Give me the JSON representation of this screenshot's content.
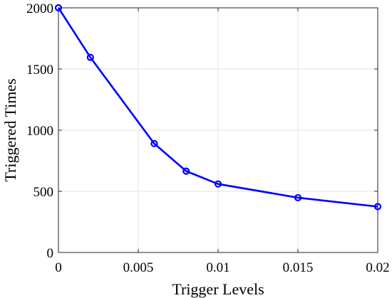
{
  "chart_data": {
    "type": "line",
    "x": [
      0,
      0.002,
      0.006,
      0.008,
      0.01,
      0.015,
      0.02
    ],
    "series": [
      {
        "values": [
          2000,
          1595,
          890,
          665,
          560,
          448,
          375
        ],
        "color": "#0000ff",
        "marker": "circle"
      }
    ],
    "xlabel": "Trigger Levels",
    "ylabel": "Triggered Times",
    "xlim": [
      0,
      0.02
    ],
    "ylim": [
      0,
      2000
    ],
    "xticks": [
      "0",
      "0.005",
      "0.01",
      "0.015",
      "0.02"
    ],
    "yticks": [
      "0",
      "500",
      "1000",
      "1500",
      "2000"
    ],
    "grid": true
  }
}
